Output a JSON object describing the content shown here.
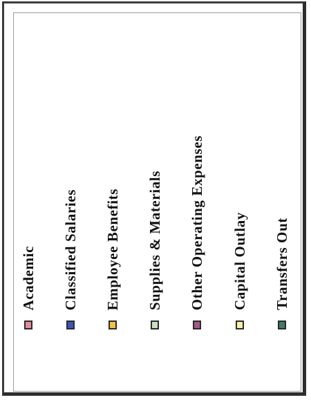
{
  "chart_data": {
    "type": "legend",
    "legend": [
      {
        "label": "Academic",
        "color": "#e58a9e"
      },
      {
        "label": "Classified Salaries",
        "color": "#3b56b8"
      },
      {
        "label": "Employee Benefits",
        "color": "#f3c24a"
      },
      {
        "label": "Supplies & Materials",
        "color": "#c9e0c3"
      },
      {
        "label": "Other Operating Expenses",
        "color": "#a05a8a"
      },
      {
        "label": "Capital Outlay",
        "color": "#f6f0a8"
      },
      {
        "label": "Transfers Out",
        "color": "#3f7a6a"
      }
    ]
  }
}
